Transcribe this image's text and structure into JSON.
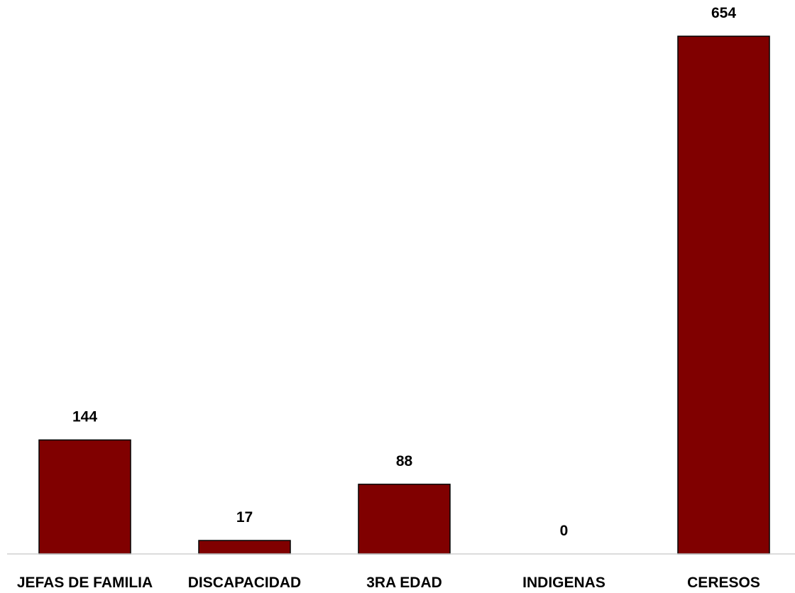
{
  "chart_data": {
    "type": "bar",
    "categories": [
      "JEFAS DE FAMILIA",
      "DISCAPACIDAD",
      "3RA EDAD",
      "INDIGENAS",
      "CERESOS"
    ],
    "values": [
      144,
      17,
      88,
      0,
      654
    ],
    "data_labels": [
      "144",
      "17",
      "88",
      "0",
      "654"
    ],
    "ylim": [
      0,
      654
    ],
    "grid": false,
    "legend": "none",
    "colors": {
      "bar": "#800000",
      "bar_border": "#000000",
      "baseline": "#d0d0d0"
    }
  }
}
